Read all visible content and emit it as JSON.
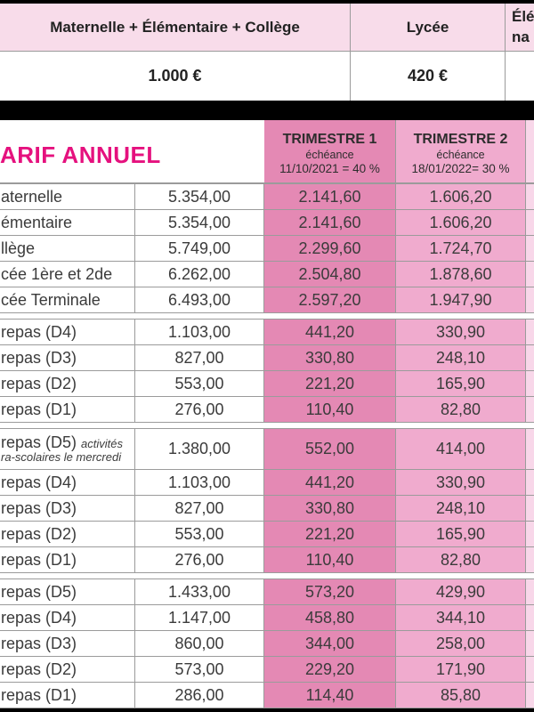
{
  "colors": {
    "accent_magenta": "#e5117e",
    "trimestre1_pink": "#e489b4",
    "trimestre2_pink": "#f0abce",
    "trimestre3_pale_pink": "#f8d7e9",
    "top_header_pink": "#f8dcea",
    "bar_black": "#000000",
    "border_gray": "#9b9b9b",
    "text_dark": "#3b3b3b"
  },
  "top_table": {
    "header": [
      "Maternelle + Élémentaire + Collège",
      "Lycée"
    ],
    "header_col3": {
      "line1": "Élé",
      "line2": "na"
    },
    "values": [
      "1.000 €",
      "420 €"
    ]
  },
  "main_table": {
    "title": "ARIF ANNUEL",
    "columns": {
      "trimestre1": {
        "title": "TRIMESTRE 1",
        "subtitle": "échéance",
        "due": "11/10/2021 = 40 %"
      },
      "trimestre2": {
        "title": "TRIMESTRE 2",
        "subtitle": "échéance",
        "due": "18/01/2022= 30 %"
      }
    },
    "groups": [
      {
        "name": "scolarite",
        "rows": [
          {
            "label": "aternelle",
            "annual": "5.354,00",
            "t1": "2.141,60",
            "t2": "1.606,20"
          },
          {
            "label": "émentaire",
            "annual": "5.354,00",
            "t1": "2.141,60",
            "t2": "1.606,20"
          },
          {
            "label": "llège",
            "annual": "5.749,00",
            "t1": "2.299,60",
            "t2": "1.724,70"
          },
          {
            "label": "cée 1ère et 2de",
            "annual": "6.262,00",
            "t1": "2.504,80",
            "t2": "1.878,60"
          },
          {
            "label": "cée Terminale",
            "annual": "6.493,00",
            "t1": "2.597,20",
            "t2": "1.947,90"
          }
        ]
      },
      {
        "name": "repas-group-1",
        "rows": [
          {
            "label": "repas (D4)",
            "annual": "1.103,00",
            "t1": "441,20",
            "t2": "330,90"
          },
          {
            "label": "repas (D3)",
            "annual": "827,00",
            "t1": "330,80",
            "t2": "248,10"
          },
          {
            "label": "repas (D2)",
            "annual": "553,00",
            "t1": "221,20",
            "t2": "165,90"
          },
          {
            "label": "repas (D1)",
            "annual": "276,00",
            "t1": "110,40",
            "t2": "82,80"
          }
        ]
      },
      {
        "name": "repas-group-2",
        "rows": [
          {
            "label": "repas (D5)",
            "label_note_inline": "activités",
            "label_note_line2": "ra-scolaires le mercredi",
            "tall": true,
            "annual": "1.380,00",
            "t1": "552,00",
            "t2": "414,00"
          },
          {
            "label": "repas (D4)",
            "annual": "1.103,00",
            "t1": "441,20",
            "t2": "330,90"
          },
          {
            "label": "repas (D3)",
            "annual": "827,00",
            "t1": "330,80",
            "t2": "248,10"
          },
          {
            "label": "repas (D2)",
            "annual": "553,00",
            "t1": "221,20",
            "t2": "165,90"
          },
          {
            "label": "repas (D1)",
            "annual": "276,00",
            "t1": "110,40",
            "t2": "82,80"
          }
        ]
      },
      {
        "name": "repas-group-3",
        "rows": [
          {
            "label": "repas (D5)",
            "annual": "1.433,00",
            "t1": "573,20",
            "t2": "429,90"
          },
          {
            "label": "repas (D4)",
            "annual": "1.147,00",
            "t1": "458,80",
            "t2": "344,10"
          },
          {
            "label": "repas (D3)",
            "annual": "860,00",
            "t1": "344,00",
            "t2": "258,00"
          },
          {
            "label": "repas (D2)",
            "annual": "573,00",
            "t1": "229,20",
            "t2": "171,90"
          },
          {
            "label": "repas (D1)",
            "annual": "286,00",
            "t1": "114,40",
            "t2": "85,80"
          }
        ]
      }
    ]
  }
}
